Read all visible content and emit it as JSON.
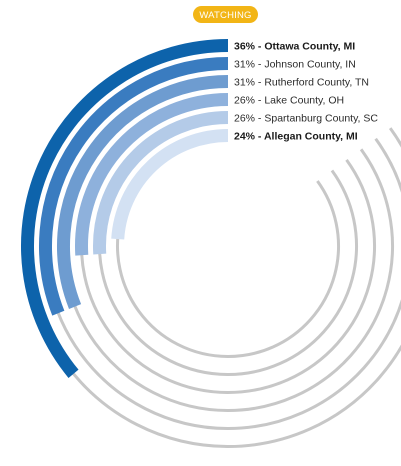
{
  "badge": {
    "text": "WATCHING",
    "color": "#f2b516"
  },
  "chart_data": {
    "type": "radial-bar",
    "scale_max_percent": 100,
    "track_color": "#c7c7c7",
    "series": [
      {
        "label": "36% - Ottawa County, MI",
        "value": 36,
        "color": "#0d63ab",
        "bold": true
      },
      {
        "label": "31% - Johnson County, IN",
        "value": 31,
        "color": "#3a7cc0",
        "bold": false
      },
      {
        "label": "31% - Rutherford County, TN",
        "value": 31,
        "color": "#6e9cd0",
        "bold": false
      },
      {
        "label": "26% - Lake County, OH",
        "value": 26,
        "color": "#8eb1dc",
        "bold": false
      },
      {
        "label": "26% - Spartanburg County, SC",
        "value": 26,
        "color": "#b4cbe8",
        "bold": false
      },
      {
        "label": "24% - Allegan County, MI",
        "value": 24,
        "color": "#d3e1f3",
        "bold": true
      }
    ]
  }
}
